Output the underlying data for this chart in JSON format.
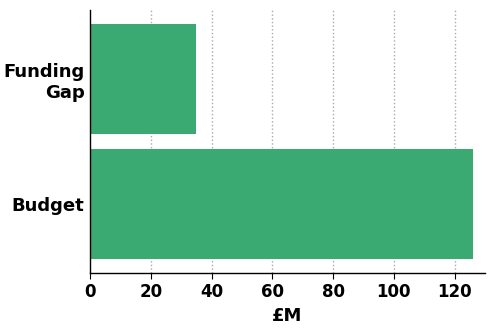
{
  "categories": [
    "Funding\nGap",
    "Budget"
  ],
  "values": [
    35,
    126
  ],
  "bar_color": "#3aaa72",
  "xlabel": "£M",
  "xlim": [
    0,
    130
  ],
  "xticks": [
    0,
    20,
    40,
    60,
    80,
    100,
    120
  ],
  "bar_height": 0.88,
  "grid_color": "#aaaaaa",
  "background_color": "#ffffff",
  "label_fontsize": 13,
  "xlabel_fontsize": 13,
  "tick_fontsize": 12
}
